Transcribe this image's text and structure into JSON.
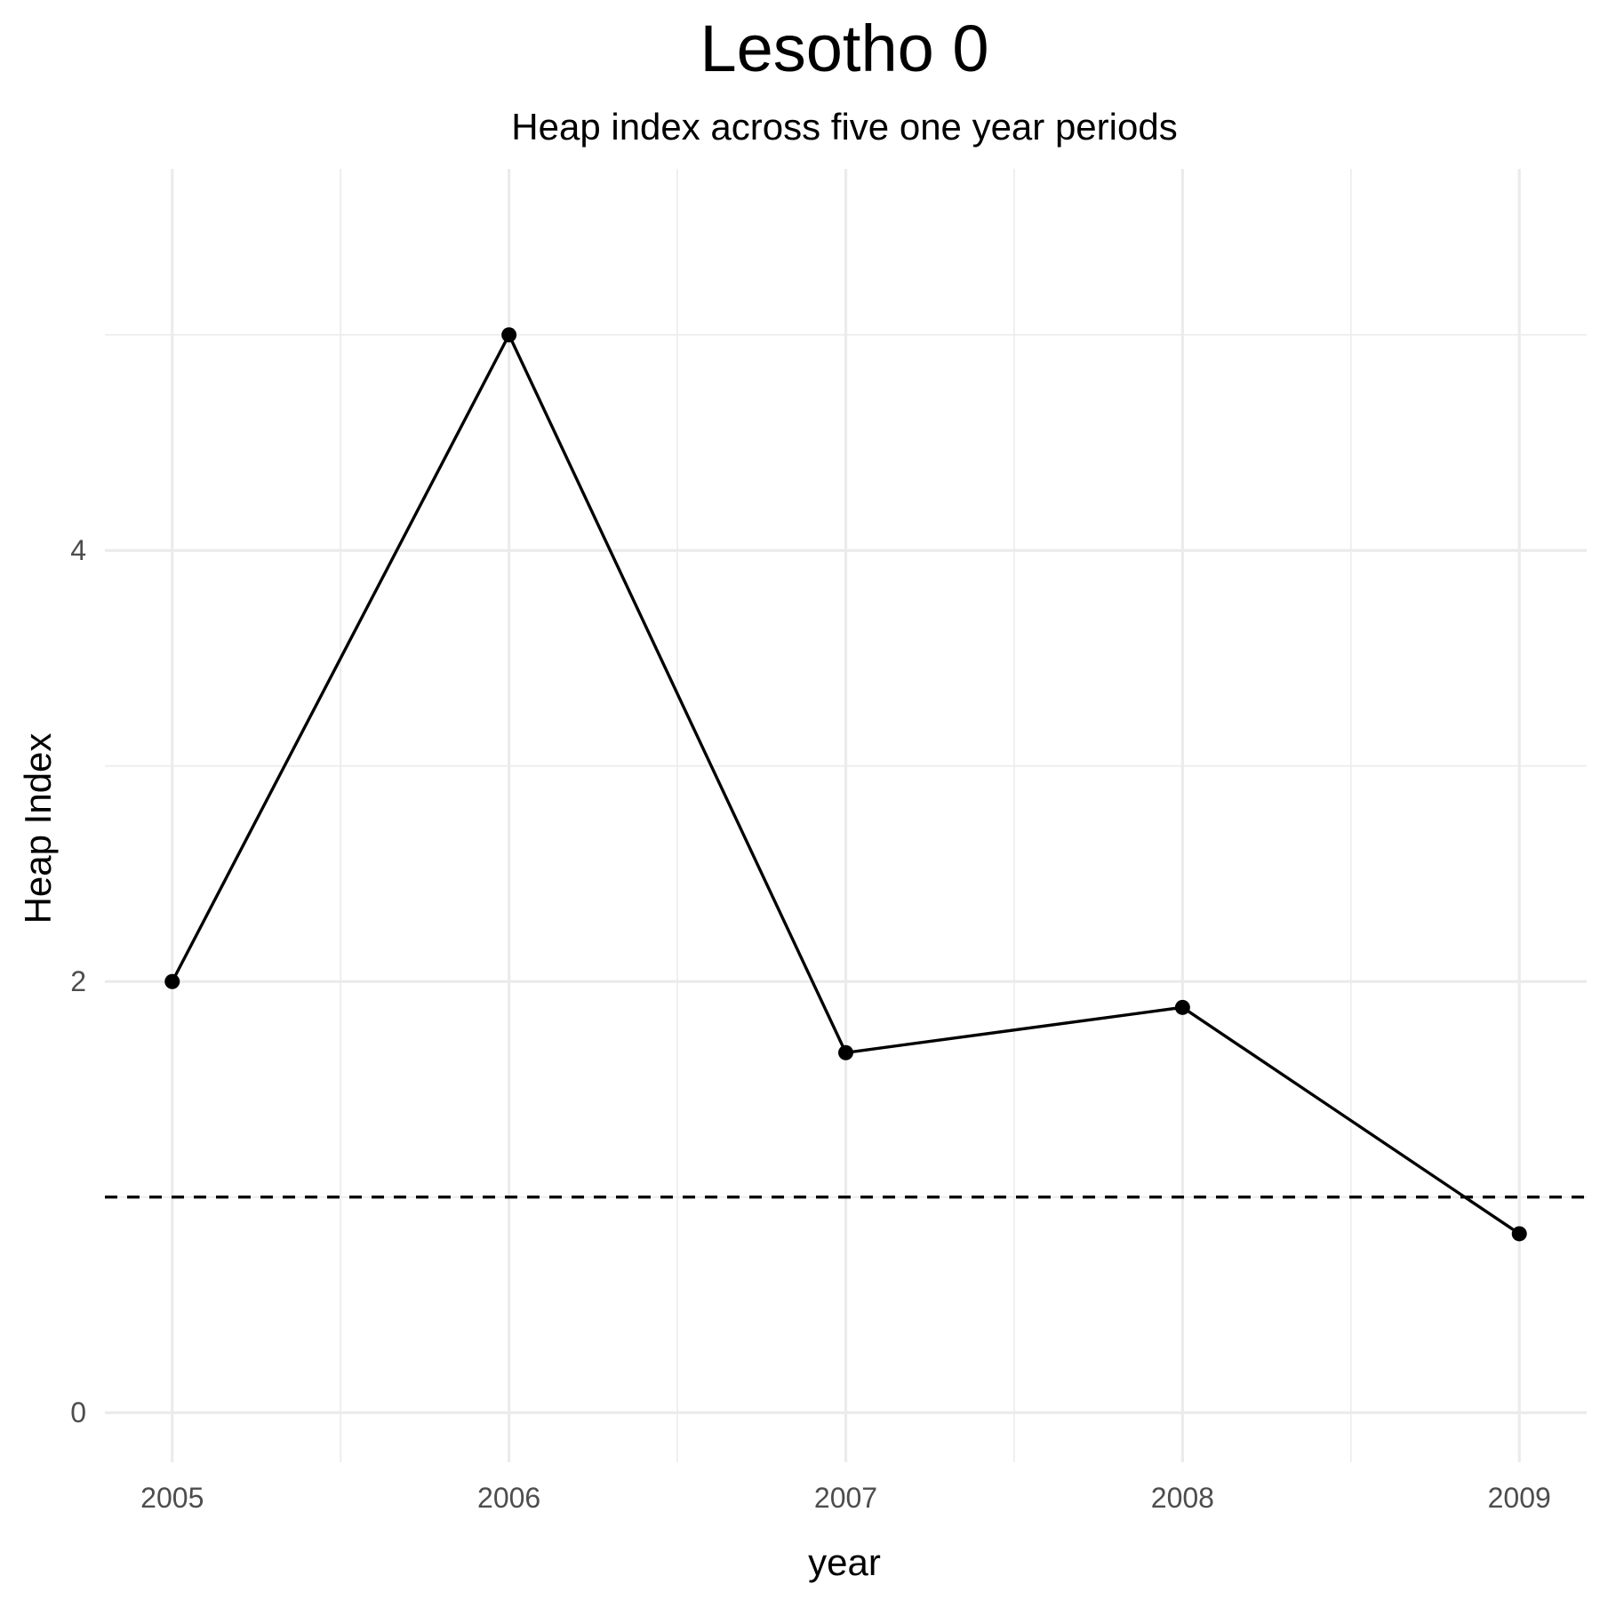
{
  "chart_data": {
    "type": "line",
    "title": "Lesotho 0",
    "subtitle": "Heap index across five one year periods",
    "xlabel": "year",
    "ylabel": "Heap Index",
    "x": [
      2005,
      2006,
      2007,
      2008,
      2009
    ],
    "x_tick_labels": [
      "2005",
      "2006",
      "2007",
      "2008",
      "2009"
    ],
    "y": [
      2.0,
      5.0,
      1.67,
      1.88,
      0.83
    ],
    "y_ticks": [
      0,
      2,
      4
    ],
    "y_tick_labels": [
      "0",
      "2",
      "4"
    ],
    "reference_line": {
      "y": 1,
      "style": "dashed"
    },
    "xlim": [
      2004.8,
      2009.2
    ],
    "ylim": [
      -0.23,
      5.77
    ],
    "grid": true,
    "legend": "none",
    "colors": {
      "line": "#000000",
      "points": "#000000",
      "grid": "#ebebeb",
      "background": "#ffffff"
    }
  }
}
